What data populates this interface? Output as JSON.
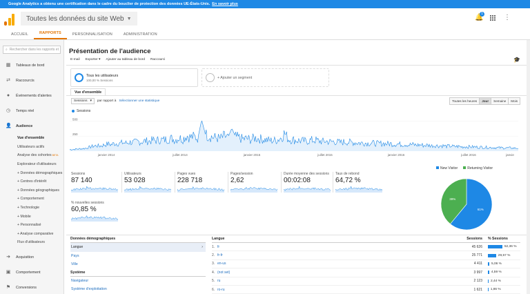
{
  "banner": {
    "text": "Google Analytics a obtenu une certification dans le cadre du bouclier de protection des données UE-États-Unis.",
    "link": "En savoir plus"
  },
  "header": {
    "account": "Toutes les données du site Web",
    "notification_count": "1"
  },
  "nav_tabs": [
    "ACCUEIL",
    "RAPPORTS",
    "PERSONNALISATION",
    "ADMINISTRATION"
  ],
  "sidebar": {
    "search_placeholder": "Rechercher dans les rapports et",
    "items": [
      {
        "label": "Tableaux de bord",
        "icon": "dashboard-icon"
      },
      {
        "label": "Raccourcis",
        "icon": "shortcut-icon"
      },
      {
        "label": "Événements d'alertes",
        "icon": "alert-icon"
      },
      {
        "label": "Temps réel",
        "icon": "clock-icon"
      },
      {
        "label": "Audience",
        "icon": "person-icon"
      }
    ],
    "audience_sub": [
      "Vue d'ensemble",
      "Utilisateurs actifs",
      "Analyse des cohortes",
      "Explorateur d'utilisateurs",
      "+ Données démographiques",
      "+ Centres d'intérêt",
      "+ Données géographiques",
      "+ Comportement",
      "+ Technologie",
      "+ Mobile",
      "+ Personnalisé",
      "+ Analyse comparative",
      "Flux d'utilisateurs"
    ],
    "beta": "BETA",
    "bottom_items": [
      {
        "label": "Acquisition",
        "icon": "acquisition-icon"
      },
      {
        "label": "Comportement",
        "icon": "behavior-icon"
      },
      {
        "label": "Conversions",
        "icon": "flag-icon"
      }
    ]
  },
  "main": {
    "title": "Présentation de l'audience",
    "actions": [
      "E-mail",
      "Exporter ▾",
      "Ajouter au tableau de bord",
      "Raccourci"
    ],
    "segment": {
      "name": "Tous les utilisateurs",
      "sub": "100,00 % Sessions"
    },
    "add_segment": "+ Ajouter un segment",
    "view_tab": "Vue d'ensemble",
    "metric_dropdown": "Sessions",
    "compare_label": "par rapport à",
    "select_stat": "Sélectionner une statistique",
    "time_buttons": [
      "Toutes les heures",
      "Jour",
      "Semaine",
      "Mois"
    ],
    "active_time": "Jour"
  },
  "chart_data": {
    "type": "line",
    "series": [
      {
        "name": "Sessions"
      }
    ],
    "y_ticks": [
      "500",
      "250"
    ],
    "ylim": [
      0,
      550
    ],
    "x_labels": [
      "janvier 2014",
      "juillet 2014",
      "janvier 2015",
      "juillet 2015",
      "janvier 2016",
      "juillet 2016",
      "janvie"
    ],
    "shape_notes": "daily sessions mostly ~100-200, spike to ~520 near mid-2014, gradually declining to ~50 by end",
    "values": [
      25,
      30,
      35,
      40,
      45,
      60,
      80,
      90,
      85,
      100,
      120,
      110,
      130,
      125,
      140,
      135,
      150,
      145,
      160,
      155,
      170,
      165,
      180,
      175,
      190,
      185,
      200,
      210,
      190,
      220,
      200,
      260,
      230,
      240,
      215,
      520,
      280,
      250,
      230,
      220,
      210,
      250,
      230,
      380,
      240,
      220,
      200,
      210,
      190,
      220,
      210,
      200,
      190,
      180,
      175,
      185,
      220,
      300,
      200,
      190,
      180,
      175,
      170,
      165,
      180,
      185,
      170,
      160,
      165,
      155,
      160,
      150,
      145,
      155,
      150,
      145,
      140,
      135,
      140,
      130,
      135,
      130,
      125,
      130,
      120,
      125,
      115,
      120,
      110,
      115,
      105,
      110,
      100,
      105,
      95,
      100,
      90,
      95,
      85,
      90,
      80,
      85,
      75,
      80,
      70,
      75,
      72,
      70,
      68,
      66,
      64,
      62,
      60,
      58,
      56,
      55,
      54,
      52,
      50,
      50
    ]
  },
  "metrics": [
    {
      "label": "Sessions",
      "value": "87 140"
    },
    {
      "label": "Utilisateurs",
      "value": "53 028"
    },
    {
      "label": "Pages vues",
      "value": "228 718"
    },
    {
      "label": "Pages/session",
      "value": "2,62"
    },
    {
      "label": "Durée moyenne des sessions",
      "value": "00:02:08"
    },
    {
      "label": "Taux de rebond",
      "value": "64,72 %"
    },
    {
      "label": "% nouvelles sessions",
      "value": "60,85 %"
    }
  ],
  "pie": {
    "legend": [
      {
        "label": "New Visitor",
        "color": "#1e88e5"
      },
      {
        "label": "Returning Visitor",
        "color": "#4caf50"
      }
    ],
    "slices": [
      {
        "label": "New Visitor",
        "value": 61,
        "color": "#1e88e5",
        "text": "61%"
      },
      {
        "label": "Returning Visitor",
        "value": 39,
        "color": "#4caf50",
        "text": "39%"
      }
    ]
  },
  "demographics": {
    "header": "Données démographiques",
    "items": [
      "Langue",
      "Pays",
      "Ville"
    ],
    "system_header": "Système",
    "system_items": [
      "Navigateur",
      "Système d'exploitation"
    ]
  },
  "lang_table": {
    "headers": {
      "lang": "Langue",
      "sessions": "Sessions",
      "pct": "% Sessions"
    },
    "rows": [
      {
        "idx": "1.",
        "lang": "fr",
        "sessions": "45 626",
        "pct": "52,36 %",
        "share": 52.36
      },
      {
        "idx": "2.",
        "lang": "fr-fr",
        "sessions": "25 771",
        "pct": "29,57 %",
        "share": 29.57
      },
      {
        "idx": "3.",
        "lang": "en-us",
        "sessions": "4 411",
        "pct": "5,06 %",
        "share": 5.06
      },
      {
        "idx": "4.",
        "lang": "(not set)",
        "sessions": "3 997",
        "pct": "4,59 %",
        "share": 4.59
      },
      {
        "idx": "5.",
        "lang": "ru",
        "sessions": "2 123",
        "pct": "2,44 %",
        "share": 2.44
      },
      {
        "idx": "6.",
        "lang": "ro-ru",
        "sessions": "1 621",
        "pct": "1,86 %",
        "share": 1.86
      }
    ]
  }
}
